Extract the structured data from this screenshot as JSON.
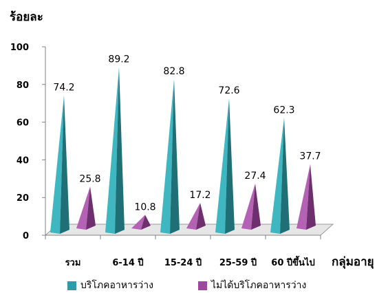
{
  "chart_data": {
    "type": "bar",
    "ylabel": "ร้อยละ",
    "xlabel": "กลุ่มอายุ",
    "ylim": [
      0,
      100
    ],
    "yticks": [
      0,
      20,
      40,
      60,
      80,
      100
    ],
    "categories": [
      "รวม",
      "6-14 ปี",
      "15-24 ปี",
      "25-59 ปี",
      "60 ปีขึ้นไป"
    ],
    "series": [
      {
        "name": "บริโภคอาหารว่าง",
        "values": [
          74.2,
          89.2,
          82.8,
          72.6,
          62.3
        ],
        "color": "#2E9CA6"
      },
      {
        "name": "ไม่ได้บริโภคอาหารว่าง",
        "values": [
          25.8,
          10.8,
          17.2,
          27.4,
          37.7
        ],
        "color": "#9C4A9C"
      }
    ],
    "grid": false,
    "legend_position": "bottom",
    "mark_shape": "3d-pyramid"
  }
}
